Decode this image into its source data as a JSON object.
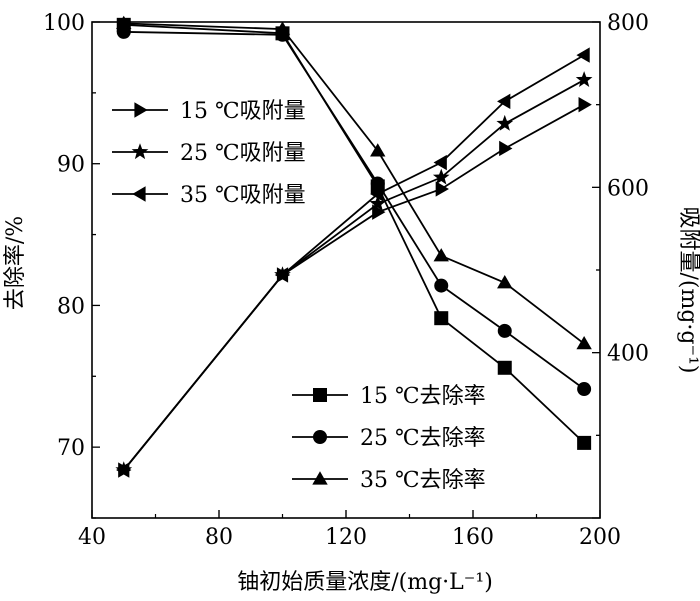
{
  "chart_data": {
    "type": "line",
    "xlabel": "铀初始质量浓度/(mg·L⁻¹)",
    "ylabel_left": "去除率/%",
    "ylabel_right": "吸附量/(mg·g⁻¹)",
    "xlim": [
      40,
      200
    ],
    "ylim_left": [
      65,
      100
    ],
    "ylim_right": [
      200,
      800
    ],
    "x_ticks": [
      "40",
      "80",
      "120",
      "160",
      "200"
    ],
    "y_left_ticks": [
      "70",
      "80",
      "90",
      "100"
    ],
    "y_right_ticks": [
      "400",
      "600",
      "800"
    ],
    "x": [
      50,
      100,
      130,
      150,
      170,
      195
    ],
    "grid": false,
    "legends": {
      "adsorption": {
        "placement": "top-left"
      },
      "removal": {
        "placement": "bottom-right"
      }
    },
    "series": [
      {
        "name": "15 ℃去除率",
        "axis": "left",
        "marker": "square",
        "values": [
          99.8,
          99.2,
          88.4,
          79.1,
          75.6,
          70.3
        ]
      },
      {
        "name": "25 ℃去除率",
        "axis": "left",
        "marker": "circle",
        "values": [
          99.3,
          99.1,
          88.6,
          81.4,
          78.2,
          74.1
        ]
      },
      {
        "name": "35 ℃去除率",
        "axis": "left",
        "marker": "triangle-up",
        "values": [
          99.9,
          99.5,
          90.9,
          83.5,
          81.6,
          77.3
        ]
      },
      {
        "name": "15 ℃吸附量",
        "axis": "right",
        "marker": "triangle-right",
        "values": [
          258,
          494,
          570,
          598,
          647,
          700
        ]
      },
      {
        "name": "25 ℃吸附量",
        "axis": "right",
        "marker": "star",
        "values": [
          258,
          494,
          580,
          612,
          677,
          730
        ]
      },
      {
        "name": "35 ℃吸附量",
        "axis": "right",
        "marker": "triangle-left",
        "values": [
          258,
          494,
          592,
          630,
          704,
          760
        ]
      }
    ]
  }
}
